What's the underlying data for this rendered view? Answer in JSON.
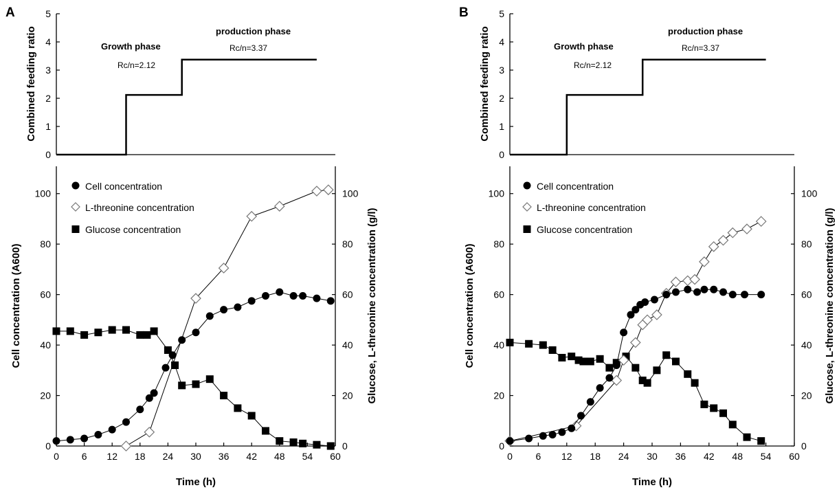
{
  "chart_data": [
    {
      "panel": "A",
      "type": "line",
      "ylabel": "Combined feeding ratio",
      "ylim": [
        0,
        5
      ],
      "yticks": [
        0,
        1,
        2,
        3,
        4,
        5
      ],
      "x_shared_with_lower": true,
      "series": [
        {
          "points": [
            [
              0,
              0
            ],
            [
              15,
              0
            ],
            [
              15,
              2.12
            ],
            [
              27,
              2.12
            ],
            [
              27,
              3.37
            ],
            [
              56,
              3.37
            ]
          ]
        }
      ],
      "annotations": [
        "Growth phase",
        "Rc/n=2.12",
        "production phase",
        "Rc/n=3.37"
      ]
    },
    {
      "panel": "A",
      "type": "line",
      "xlabel": "Time (h)",
      "ylabel": "Cell concentration (A600)",
      "y2label": "Glucose, L-threonine concentration (g/l)",
      "xlim": [
        0,
        60
      ],
      "xticks": [
        0,
        6,
        12,
        18,
        24,
        30,
        36,
        42,
        48,
        54,
        60
      ],
      "ylim": [
        0,
        110
      ],
      "yticks": [
        0,
        20,
        40,
        60,
        80,
        100
      ],
      "y2lim": [
        0,
        110
      ],
      "y2ticks": [
        0,
        20,
        40,
        60,
        80,
        100
      ],
      "legend": "top-left",
      "series": [
        {
          "name": "Cell concentration",
          "marker": "filled-circle",
          "axis": "left",
          "x": [
            0,
            3,
            6,
            9,
            12,
            15,
            18,
            20,
            21,
            23.5,
            25,
            27,
            30,
            33,
            36,
            39,
            42,
            45,
            48,
            51,
            53,
            56,
            59
          ],
          "y": [
            2,
            2.5,
            3,
            4.5,
            6.5,
            9.5,
            14.5,
            19,
            21,
            31,
            36,
            42,
            45,
            51.5,
            54,
            55,
            57.5,
            59.5,
            61,
            59.5,
            59.5,
            58.5,
            57.5
          ]
        },
        {
          "name": "L-threonine concentration",
          "marker": "open-diamond",
          "axis": "right",
          "x": [
            15,
            20,
            30,
            36,
            42,
            48,
            56,
            58.5
          ],
          "y": [
            0,
            5.5,
            58.5,
            70.5,
            91,
            95,
            101,
            101.5
          ]
        },
        {
          "name": "Glucose concentration",
          "marker": "filled-square",
          "axis": "right",
          "x": [
            0,
            3,
            6,
            9,
            12,
            15,
            18,
            19.5,
            21,
            24,
            25.5,
            27,
            30,
            33,
            36,
            39,
            42,
            45,
            48,
            51,
            53,
            56,
            59
          ],
          "y": [
            45.5,
            45.5,
            44,
            45,
            46,
            46,
            44,
            44,
            45.5,
            38,
            32,
            24,
            24.5,
            26.5,
            20,
            15,
            12,
            6,
            2,
            1.5,
            1,
            0.5,
            0
          ]
        }
      ]
    },
    {
      "panel": "B",
      "type": "line",
      "ylabel": "Combined feeding ratio",
      "ylim": [
        0,
        5
      ],
      "yticks": [
        0,
        1,
        2,
        3,
        4,
        5
      ],
      "x_shared_with_lower": true,
      "series": [
        {
          "points": [
            [
              0,
              0
            ],
            [
              12,
              0
            ],
            [
              12,
              2.12
            ],
            [
              28,
              2.12
            ],
            [
              28,
              3.37
            ],
            [
              54,
              3.37
            ]
          ]
        }
      ],
      "annotations": [
        "Growth phase",
        "Rc/n=2.12",
        "production phase",
        "Rc/n=3.37"
      ]
    },
    {
      "panel": "B",
      "type": "line",
      "xlabel": "Time (h)",
      "ylabel": "Cell concentration (A600)",
      "y2label": "Glucose, L-threonine concentration (g/l)",
      "xlim": [
        0,
        60
      ],
      "xticks": [
        0,
        6,
        12,
        18,
        24,
        30,
        36,
        42,
        48,
        54,
        60
      ],
      "ylim": [
        0,
        110
      ],
      "yticks": [
        0,
        20,
        40,
        60,
        80,
        100
      ],
      "y2lim": [
        0,
        110
      ],
      "y2ticks": [
        0,
        20,
        40,
        60,
        80,
        100
      ],
      "legend": "top-left",
      "series": [
        {
          "name": "Cell concentration",
          "marker": "filled-circle",
          "axis": "left",
          "x": [
            0,
            4,
            7,
            9,
            11,
            13,
            15,
            17,
            19,
            21,
            22.5,
            24,
            25.5,
            26.5,
            27.5,
            28.5,
            30.5,
            33,
            35,
            37.5,
            39.5,
            41,
            43,
            45,
            47,
            49.5,
            53
          ],
          "y": [
            2,
            3,
            4,
            4.5,
            5.5,
            7,
            12,
            17.5,
            23,
            27,
            32,
            45,
            52,
            54,
            56,
            57,
            58,
            60,
            61,
            62,
            61,
            62,
            62,
            61,
            60,
            60,
            60
          ]
        },
        {
          "name": "L-threonine concentration",
          "marker": "open-diamond",
          "axis": "right",
          "x": [
            0,
            14,
            22.5,
            24,
            26.5,
            28,
            29,
            31,
            33,
            35,
            37.5,
            39,
            41,
            43,
            45,
            47,
            50,
            53
          ],
          "y": [
            2,
            8,
            26,
            34,
            41,
            48,
            50,
            52,
            60.5,
            65,
            65.5,
            66,
            73,
            79,
            81.5,
            84.5,
            86,
            89
          ]
        },
        {
          "name": "Glucose concentration",
          "marker": "filled-square",
          "axis": "right",
          "x": [
            0,
            4,
            7,
            9,
            11,
            13,
            14.5,
            15.5,
            17,
            19,
            21,
            22.5,
            24.5,
            26.5,
            28,
            29,
            31,
            33,
            35,
            37.5,
            39,
            41,
            43,
            45,
            47,
            50,
            53
          ],
          "y": [
            41,
            40.5,
            40,
            38,
            35,
            35.5,
            34,
            33.5,
            33.5,
            34.5,
            31,
            33,
            35.5,
            31,
            26,
            25,
            30,
            36,
            33.5,
            28.5,
            25,
            16.5,
            15,
            13,
            8.5,
            3.5,
            2
          ]
        }
      ]
    }
  ]
}
